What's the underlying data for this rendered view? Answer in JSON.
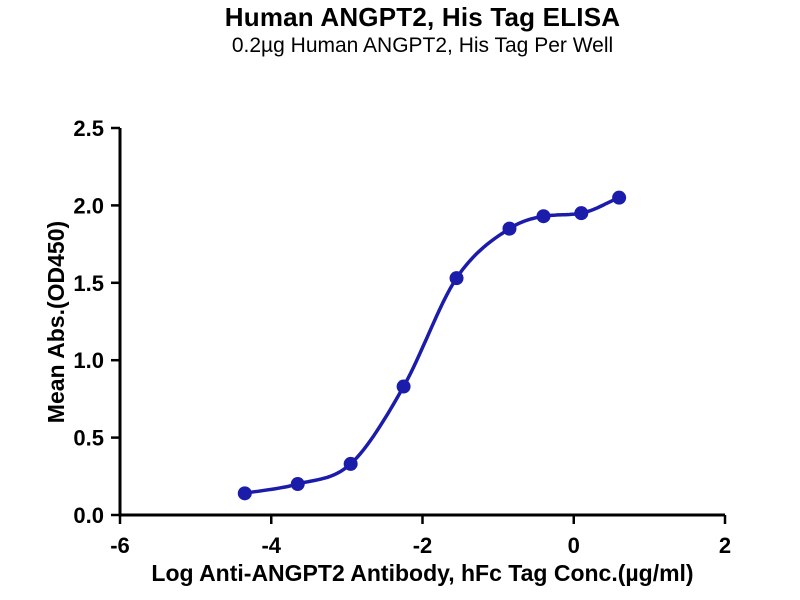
{
  "chart_data": {
    "type": "scatter",
    "title": "Human ANGPT2, His Tag ELISA",
    "subtitle": "0.2µg Human ANGPT2, His Tag Per Well",
    "xlabel": "Log Anti-ANGPT2 Antibody, hFc Tag Conc.(µg/ml)",
    "ylabel": "Mean Abs.(OD450)",
    "xlim": [
      -6,
      2
    ],
    "ylim": [
      0,
      2.5
    ],
    "xticks": [
      {
        "value": -6,
        "label": "-6"
      },
      {
        "value": -4,
        "label": "-4"
      },
      {
        "value": -2,
        "label": "-2"
      },
      {
        "value": 0,
        "label": "0"
      },
      {
        "value": 2,
        "label": "2"
      }
    ],
    "yticks": [
      {
        "value": 0.0,
        "label": "0.0"
      },
      {
        "value": 0.5,
        "label": "0.5"
      },
      {
        "value": 1.0,
        "label": "1.0"
      },
      {
        "value": 1.5,
        "label": "1.5"
      },
      {
        "value": 2.0,
        "label": "2.0"
      },
      {
        "value": 2.5,
        "label": "2.5"
      }
    ],
    "grid": false,
    "legend": null,
    "curve": "sigmoidal dose-response fit through points",
    "series": [
      {
        "color": "#1c1cab",
        "marker": "circle",
        "points": [
          {
            "x": -4.35,
            "y": 0.14
          },
          {
            "x": -3.65,
            "y": 0.2
          },
          {
            "x": -2.95,
            "y": 0.33
          },
          {
            "x": -2.25,
            "y": 0.83
          },
          {
            "x": -1.55,
            "y": 1.53
          },
          {
            "x": -0.85,
            "y": 1.85
          },
          {
            "x": -0.4,
            "y": 1.93
          },
          {
            "x": 0.1,
            "y": 1.95
          },
          {
            "x": 0.6,
            "y": 2.05
          }
        ]
      }
    ]
  }
}
